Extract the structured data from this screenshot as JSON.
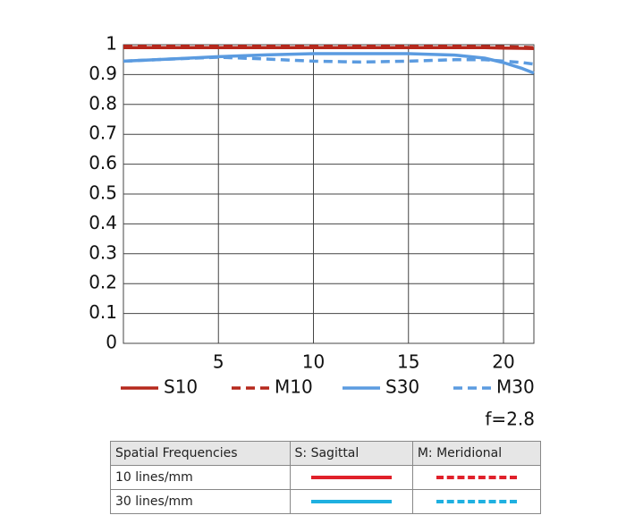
{
  "chart_data": {
    "type": "line",
    "x": [
      0,
      2.5,
      5,
      7.5,
      10,
      12.5,
      15,
      17.5,
      19,
      20,
      21,
      21.6
    ],
    "series": [
      {
        "name": "S10",
        "color": "#b5281c",
        "dash": false,
        "values": [
          0.99,
          0.99,
          0.99,
          0.99,
          0.99,
          0.99,
          0.99,
          0.99,
          0.99,
          0.989,
          0.988,
          0.987
        ]
      },
      {
        "name": "M10",
        "color": "#b5281c",
        "dash": true,
        "values": [
          0.995,
          0.995,
          0.995,
          0.995,
          0.995,
          0.995,
          0.995,
          0.995,
          0.994,
          0.993,
          0.992,
          0.99
        ]
      },
      {
        "name": "S30",
        "color": "#5b9be0",
        "dash": false,
        "values": [
          0.945,
          0.952,
          0.96,
          0.966,
          0.97,
          0.97,
          0.97,
          0.965,
          0.955,
          0.94,
          0.92,
          0.905
        ]
      },
      {
        "name": "M30",
        "color": "#5b9be0",
        "dash": true,
        "values": [
          0.945,
          0.952,
          0.958,
          0.952,
          0.945,
          0.942,
          0.945,
          0.95,
          0.95,
          0.945,
          0.94,
          0.935
        ]
      }
    ],
    "xlim": [
      0,
      21.6
    ],
    "ylim": [
      0,
      1
    ],
    "xticks": [
      5,
      10,
      15,
      20
    ],
    "yticks": [
      0,
      0.1,
      0.2,
      0.3,
      0.4,
      0.5,
      0.6,
      0.7,
      0.8,
      0.9,
      1
    ],
    "grid": true,
    "annotation": "f=2.8"
  },
  "table": {
    "header": [
      "Spatial Frequencies",
      "S: Sagittal",
      "M: Meridional"
    ],
    "rows": [
      [
        "10 lines/mm"
      ],
      [
        "30 lines/mm"
      ]
    ]
  }
}
